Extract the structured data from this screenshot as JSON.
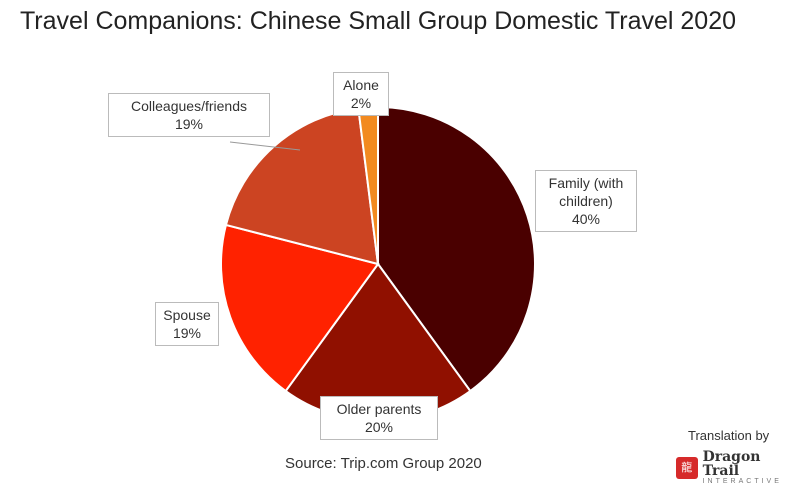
{
  "chart_data": {
    "type": "pie",
    "title": "Travel Companions: Chinese Small Group Domestic Travel 2020",
    "categories": [
      "Family (with children)",
      "Older parents",
      "Spouse",
      "Colleagues/friends",
      "Alone"
    ],
    "values": [
      40,
      20,
      19,
      19,
      2
    ],
    "labels": [
      "40%",
      "20%",
      "19%",
      "19%",
      "2%"
    ],
    "colors": [
      "#4a0000",
      "#901000",
      "#ff2200",
      "#cc4422",
      "#f28a20"
    ],
    "source": "Source: Trip.com Group 2020"
  },
  "branding": {
    "translation": "Translation by",
    "logo_name": "Dragon Trail",
    "logo_sub": "INTERACTIVE"
  }
}
